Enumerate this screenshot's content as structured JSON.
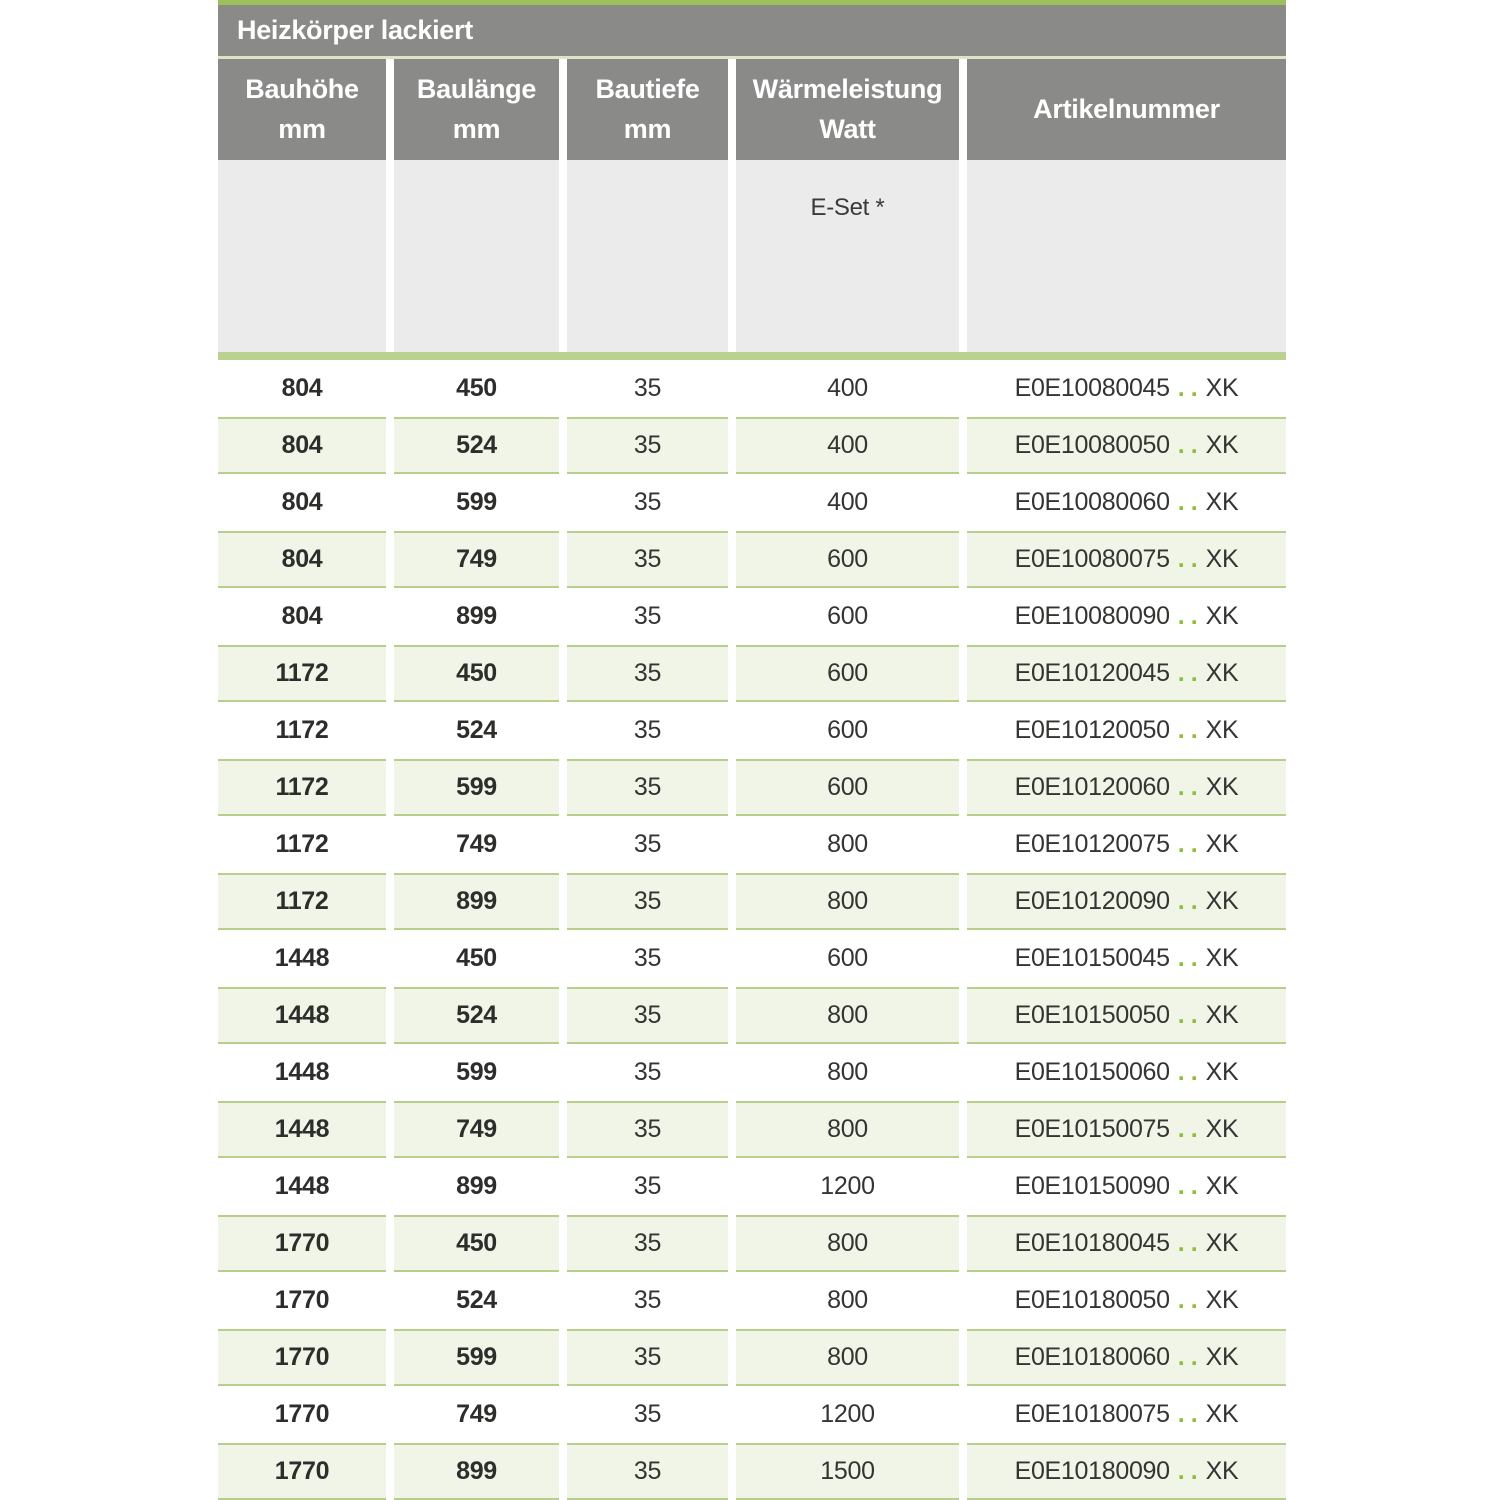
{
  "table": {
    "title": "Heizkörper lackiert",
    "columns": [
      {
        "line1": "Bauhöhe",
        "line2": "mm"
      },
      {
        "line1": "Baulänge",
        "line2": "mm"
      },
      {
        "line1": "Bautiefe",
        "line2": "mm"
      },
      {
        "line1": "Wärmeleistung",
        "line2": "Watt"
      },
      {
        "line1": "Artikelnummer",
        "line2": ""
      }
    ],
    "subheader": {
      "eset_label": "E-Set *"
    },
    "dots": "..",
    "rows": [
      {
        "bauhoehe": "804",
        "baulaenge": "450",
        "bautiefe": "35",
        "watt": "400",
        "artikel_code": "E0E10080045",
        "artikel_suffix": "XK"
      },
      {
        "bauhoehe": "804",
        "baulaenge": "524",
        "bautiefe": "35",
        "watt": "400",
        "artikel_code": "E0E10080050",
        "artikel_suffix": "XK"
      },
      {
        "bauhoehe": "804",
        "baulaenge": "599",
        "bautiefe": "35",
        "watt": "400",
        "artikel_code": "E0E10080060",
        "artikel_suffix": "XK"
      },
      {
        "bauhoehe": "804",
        "baulaenge": "749",
        "bautiefe": "35",
        "watt": "600",
        "artikel_code": "E0E10080075",
        "artikel_suffix": "XK"
      },
      {
        "bauhoehe": "804",
        "baulaenge": "899",
        "bautiefe": "35",
        "watt": "600",
        "artikel_code": "E0E10080090",
        "artikel_suffix": "XK"
      },
      {
        "bauhoehe": "1172",
        "baulaenge": "450",
        "bautiefe": "35",
        "watt": "600",
        "artikel_code": "E0E10120045",
        "artikel_suffix": "XK"
      },
      {
        "bauhoehe": "1172",
        "baulaenge": "524",
        "bautiefe": "35",
        "watt": "600",
        "artikel_code": "E0E10120050",
        "artikel_suffix": "XK"
      },
      {
        "bauhoehe": "1172",
        "baulaenge": "599",
        "bautiefe": "35",
        "watt": "600",
        "artikel_code": "E0E10120060",
        "artikel_suffix": "XK"
      },
      {
        "bauhoehe": "1172",
        "baulaenge": "749",
        "bautiefe": "35",
        "watt": "800",
        "artikel_code": "E0E10120075",
        "artikel_suffix": "XK"
      },
      {
        "bauhoehe": "1172",
        "baulaenge": "899",
        "bautiefe": "35",
        "watt": "800",
        "artikel_code": "E0E10120090",
        "artikel_suffix": "XK"
      },
      {
        "bauhoehe": "1448",
        "baulaenge": "450",
        "bautiefe": "35",
        "watt": "600",
        "artikel_code": "E0E10150045",
        "artikel_suffix": "XK"
      },
      {
        "bauhoehe": "1448",
        "baulaenge": "524",
        "bautiefe": "35",
        "watt": "800",
        "artikel_code": "E0E10150050",
        "artikel_suffix": "XK"
      },
      {
        "bauhoehe": "1448",
        "baulaenge": "599",
        "bautiefe": "35",
        "watt": "800",
        "artikel_code": "E0E10150060",
        "artikel_suffix": "XK"
      },
      {
        "bauhoehe": "1448",
        "baulaenge": "749",
        "bautiefe": "35",
        "watt": "800",
        "artikel_code": "E0E10150075",
        "artikel_suffix": "XK"
      },
      {
        "bauhoehe": "1448",
        "baulaenge": "899",
        "bautiefe": "35",
        "watt": "1200",
        "artikel_code": "E0E10150090",
        "artikel_suffix": "XK"
      },
      {
        "bauhoehe": "1770",
        "baulaenge": "450",
        "bautiefe": "35",
        "watt": "800",
        "artikel_code": "E0E10180045",
        "artikel_suffix": "XK"
      },
      {
        "bauhoehe": "1770",
        "baulaenge": "524",
        "bautiefe": "35",
        "watt": "800",
        "artikel_code": "E0E10180050",
        "artikel_suffix": "XK"
      },
      {
        "bauhoehe": "1770",
        "baulaenge": "599",
        "bautiefe": "35",
        "watt": "800",
        "artikel_code": "E0E10180060",
        "artikel_suffix": "XK"
      },
      {
        "bauhoehe": "1770",
        "baulaenge": "749",
        "bautiefe": "35",
        "watt": "1200",
        "artikel_code": "E0E10180075",
        "artikel_suffix": "XK"
      },
      {
        "bauhoehe": "1770",
        "baulaenge": "899",
        "bautiefe": "35",
        "watt": "1500",
        "artikel_code": "E0E10180090",
        "artikel_suffix": "XK"
      }
    ],
    "colors": {
      "accent_green": "#9cc05a",
      "separator_green": "#bad290",
      "row_green_bg": "#f0f5e8",
      "row_green_border": "#b7ce8c",
      "dots_green": "#8fbe3f",
      "header_gray": "#8a8a89",
      "subheader_gray": "#ebebeb",
      "text_dark": "#343432",
      "header_text": "#ffffff"
    }
  }
}
